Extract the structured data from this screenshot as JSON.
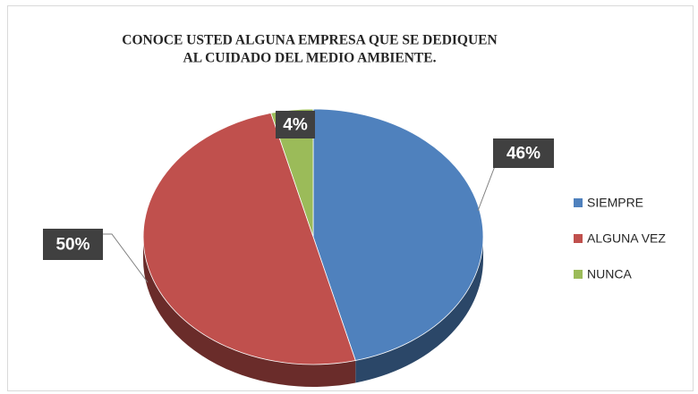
{
  "chart_data": {
    "type": "pie",
    "title": [
      "CONOCE USTED ALGUNA EMPRESA QUE SE DEDIQUEN",
      "AL CUIDADO DEL MEDIO AMBIENTE."
    ],
    "categories": [
      "SIEMPRE",
      "ALGUNA VEZ",
      "NUNCA"
    ],
    "values": [
      46,
      50,
      4
    ],
    "value_labels": [
      "46%",
      "50%",
      "4%"
    ],
    "colors": [
      "#4f81bd",
      "#c0504d",
      "#9bbb59"
    ],
    "legend": "right"
  }
}
